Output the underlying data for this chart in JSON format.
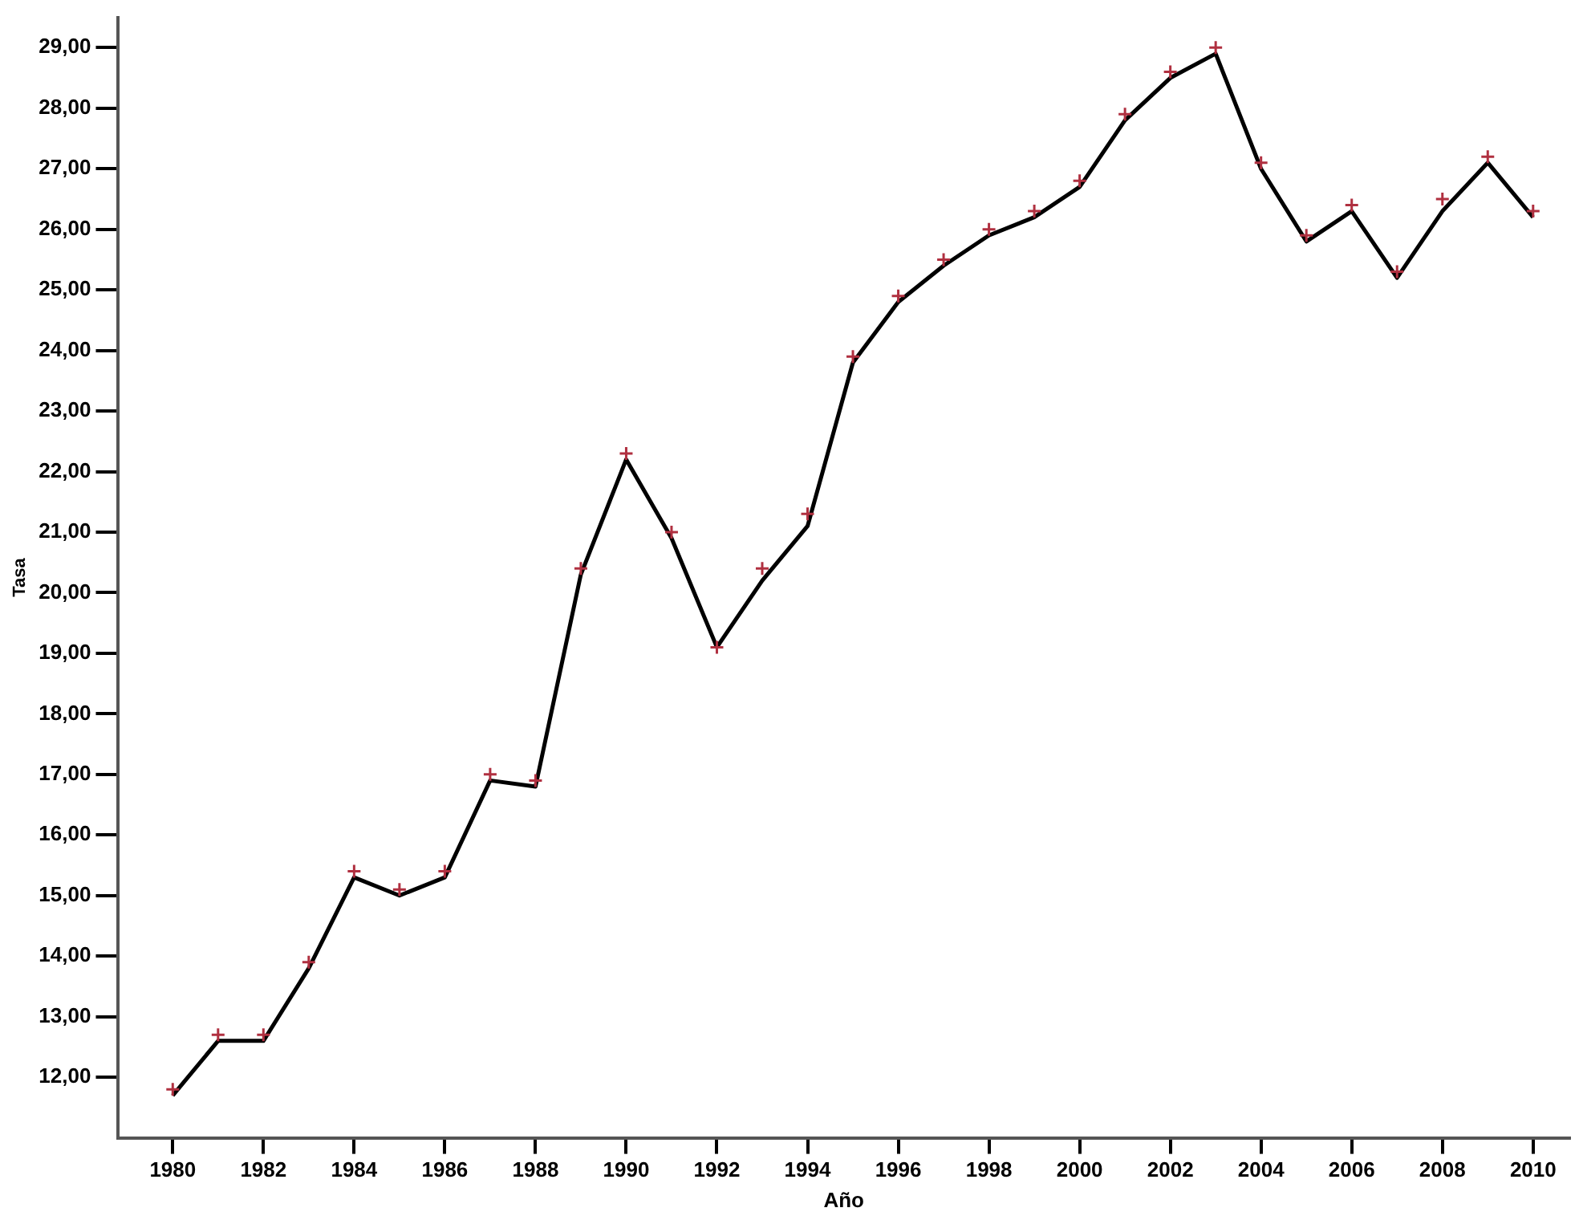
{
  "chart_data": {
    "type": "line",
    "xlabel": "Año",
    "ylabel": "Tasa",
    "x": [
      1980,
      1981,
      1982,
      1983,
      1984,
      1985,
      1986,
      1987,
      1988,
      1989,
      1990,
      1991,
      1992,
      1993,
      1994,
      1995,
      1996,
      1997,
      1998,
      1999,
      2000,
      2001,
      2002,
      2003,
      2004,
      2005,
      2006,
      2007,
      2008,
      2009,
      2010
    ],
    "series": [
      {
        "type": "scatter",
        "color": "#b03040",
        "marker": "cross",
        "values": [
          11.8,
          12.7,
          12.7,
          13.9,
          15.4,
          15.1,
          15.4,
          17.0,
          16.9,
          20.4,
          22.3,
          21.0,
          19.1,
          20.4,
          21.3,
          23.9,
          24.9,
          25.5,
          26.0,
          26.3,
          26.8,
          27.9,
          28.6,
          29.0,
          27.1,
          25.9,
          26.4,
          25.3,
          26.5,
          27.2,
          26.3
        ]
      },
      {
        "color": "#000000",
        "marker": "none",
        "values": [
          11.7,
          12.6,
          12.6,
          13.8,
          15.3,
          15.0,
          15.3,
          16.9,
          16.8,
          20.3,
          22.2,
          20.9,
          19.1,
          20.2,
          21.1,
          23.8,
          24.8,
          25.4,
          25.9,
          26.2,
          26.7,
          27.8,
          28.5,
          28.9,
          27.0,
          25.8,
          26.3,
          25.2,
          26.3,
          27.1,
          26.2
        ]
      }
    ],
    "xlim": [
      1978.8,
      2010.8
    ],
    "xticks": [
      1980,
      1982,
      1984,
      1986,
      1988,
      1990,
      1992,
      1994,
      1996,
      1998,
      2000,
      2002,
      2004,
      2006,
      2008,
      2010
    ],
    "ylim": [
      11,
      29.5
    ],
    "yticks": [
      {
        "value": 12,
        "label": "12,00"
      },
      {
        "value": 13,
        "label": "13,00"
      },
      {
        "value": 14,
        "label": "14,00"
      },
      {
        "value": 15,
        "label": "15,00"
      },
      {
        "value": 16,
        "label": "16,00"
      },
      {
        "value": 17,
        "label": "17,00"
      },
      {
        "value": 18,
        "label": "18,00"
      },
      {
        "value": 19,
        "label": "19,00"
      },
      {
        "value": 20,
        "label": "20,00"
      },
      {
        "value": 21,
        "label": "21,00"
      },
      {
        "value": 22,
        "label": "22,00"
      },
      {
        "value": 23,
        "label": "23,00"
      },
      {
        "value": 24,
        "label": "24,00"
      },
      {
        "value": 25,
        "label": "25,00"
      },
      {
        "value": 26,
        "label": "26,00"
      },
      {
        "value": 27,
        "label": "27,00"
      },
      {
        "value": 28,
        "label": "28,00"
      },
      {
        "value": 29,
        "label": "29,00"
      }
    ],
    "grid": false,
    "legend": false
  }
}
